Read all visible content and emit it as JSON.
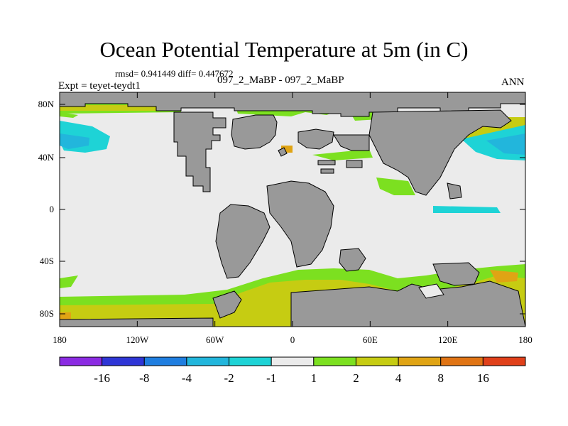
{
  "title": "Ocean Potential Temperature at 5m (in C)",
  "stats": "rmsd= 0.941449 diff= 0.447672",
  "case": "097_2_MaBP - 097_2_MaBP",
  "expt": "Expt = teyet-teydt1",
  "season": "ANN",
  "map": {
    "lat_ticks": [
      "80N",
      "40N",
      "0",
      "40S",
      "80S"
    ],
    "lon_ticks": [
      "180",
      "120W",
      "60W",
      "0",
      "60E",
      "120E",
      "180"
    ]
  },
  "colorbar": {
    "colors": [
      "#8b2be2",
      "#2f36d6",
      "#1f7ee0",
      "#22b6dc",
      "#1ed3d6",
      "#ebebeb",
      "#7ce020",
      "#c6cc12",
      "#e0a414",
      "#e07414",
      "#e0401a"
    ],
    "labels": [
      "-16",
      "-8",
      "-4",
      "-2",
      "-1",
      "1",
      "2",
      "4",
      "8",
      "16"
    ]
  },
  "palette": {
    "ocean": "#ebebeb",
    "land": "#999999",
    "green": "#7ce020",
    "olive": "#c6cc12",
    "orange": "#e0a414",
    "cyan": "#1ed3d6",
    "blue": "#22b6dc"
  }
}
